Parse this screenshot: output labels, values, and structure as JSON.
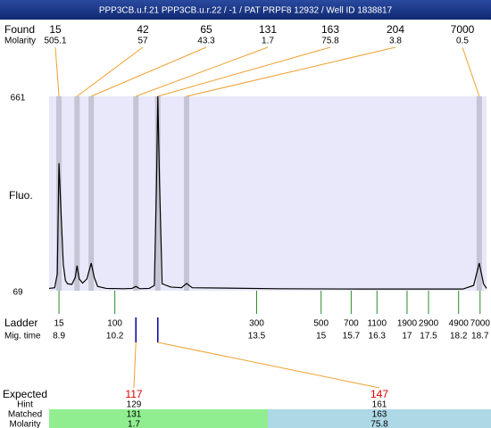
{
  "header": {
    "title": "PPP3CB.u.f.21  PPP3CB.u.r.22 / -1 / PAT PRPF8 12932 / Well ID 1838817"
  },
  "found": {
    "label": "Found",
    "molarity_label": "Molarity",
    "peaks": [
      {
        "size": 15,
        "molarity": 505.1,
        "mig_time": 8.9
      },
      {
        "size": 42,
        "molarity": 57,
        "mig_time": 9.32
      },
      {
        "size": 65,
        "molarity": 43.3,
        "mig_time": 9.65
      },
      {
        "size": 131,
        "molarity": 1.7,
        "mig_time": 10.69
      },
      {
        "size": 163,
        "molarity": 75.8,
        "mig_time": 11.2
      },
      {
        "size": 204,
        "molarity": 3.8,
        "mig_time": 11.87
      },
      {
        "size": 7000,
        "molarity": 0.5,
        "mig_time": 18.68
      }
    ]
  },
  "chart_data": {
    "type": "line",
    "ylabel": "Fluo.",
    "color": "#000000",
    "ylim": [
      69,
      661
    ],
    "yticks": [
      69,
      661
    ],
    "xlim": [
      8.67,
      18.85
    ],
    "x": [
      8.67,
      8.8,
      8.86,
      8.9,
      8.95,
      9.0,
      9.05,
      9.1,
      9.2,
      9.28,
      9.32,
      9.37,
      9.45,
      9.55,
      9.65,
      9.72,
      9.8,
      10.0,
      10.4,
      10.6,
      10.69,
      10.78,
      11.0,
      11.12,
      11.17,
      11.2,
      11.24,
      11.3,
      11.5,
      11.75,
      11.87,
      12.0,
      14.0,
      16.0,
      18.3,
      18.55,
      18.68,
      18.78,
      18.85
    ],
    "values": [
      76,
      78,
      120,
      457,
      300,
      150,
      100,
      90,
      88,
      110,
      145,
      105,
      92,
      105,
      153,
      110,
      82,
      76,
      75,
      76,
      82,
      75,
      76,
      85,
      400,
      661,
      400,
      90,
      80,
      78,
      91,
      78,
      75,
      74,
      74,
      85,
      153,
      90,
      76
    ]
  },
  "ladder": {
    "label": "Ladder",
    "time_label": "Mig. time",
    "sizes": [
      15,
      100,
      300,
      500,
      700,
      1100,
      1900,
      2900,
      4900,
      7000
    ],
    "mig_times": [
      8.9,
      10.2,
      13.5,
      15,
      15.7,
      16.3,
      17,
      17.5,
      18.2,
      18.7
    ]
  },
  "expected": {
    "labels": [
      "Expected",
      "Hint",
      "Matched",
      "Molarity"
    ],
    "targets": [
      {
        "expected": 117,
        "hint": 129,
        "matched": 131,
        "molarity": 1.7,
        "mig_time": 10.69,
        "color": "#90ee90"
      },
      {
        "expected": 147,
        "hint": 161,
        "matched": 163,
        "molarity": 75.8,
        "mig_time": 11.2,
        "color": "#add8e6"
      }
    ]
  }
}
